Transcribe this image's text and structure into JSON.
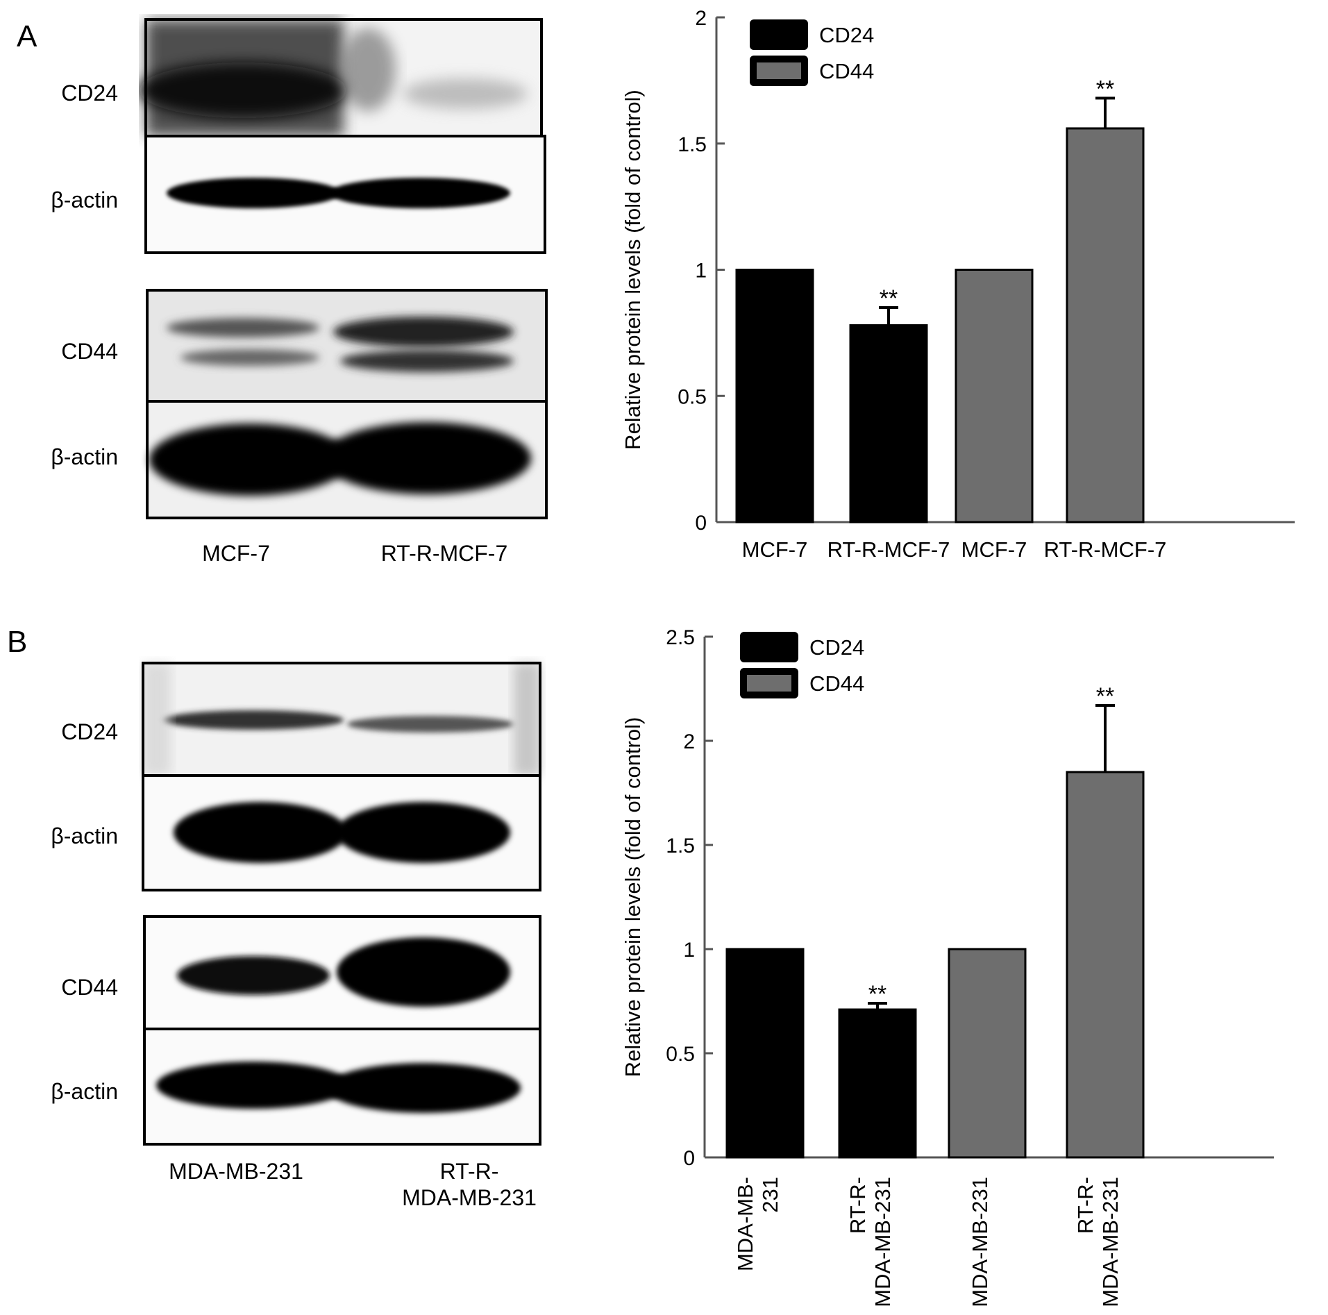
{
  "panels": {
    "a": {
      "letter": "A",
      "blot": {
        "rows": [
          "CD24",
          "β-actin",
          "CD44",
          "β-actin"
        ],
        "lanes": [
          "MCF-7",
          "RT-R-MCF-7"
        ]
      }
    },
    "b": {
      "letter": "B",
      "blot": {
        "rows": [
          "CD24",
          "β-actin",
          "CD44",
          "β-actin"
        ],
        "lanes": [
          "MDA-MB-231",
          "RT-R-\nMDA-MB-231"
        ]
      }
    }
  },
  "colors": {
    "cd24": "#000000",
    "cd44": "#6e6e6e"
  },
  "chart_data": [
    {
      "type": "bar",
      "ylabel": "Relative protein levels (fold of control)",
      "ylim": [
        0,
        2
      ],
      "yticks": [
        0,
        0.5,
        1,
        1.5,
        2
      ],
      "categories": [
        "MCF-7",
        "RT-R-MCF-7",
        "MCF-7",
        "RT-R-MCF-7"
      ],
      "values": [
        1.0,
        0.78,
        1.0,
        1.56
      ],
      "errors": [
        0,
        0.07,
        0,
        0.12
      ],
      "significance": [
        "",
        "**",
        "",
        "**"
      ],
      "series_of_bar": [
        0,
        0,
        1,
        1
      ],
      "series": [
        {
          "name": "CD24"
        },
        {
          "name": "CD44"
        }
      ],
      "legend": "top-left",
      "label_orientation": "horizontal",
      "grid": false
    },
    {
      "type": "bar",
      "ylabel": "Relative protein levels (fold of control)",
      "ylim": [
        0,
        2.5
      ],
      "yticks": [
        0,
        0.5,
        1,
        1.5,
        2,
        2.5
      ],
      "categories": [
        "MDA-MB-\n231",
        "RT-R-\nMDA-MB-231",
        "MDA-MB-231",
        "RT-R-\nMDA-MB-231"
      ],
      "values": [
        1.0,
        0.71,
        1.0,
        1.85
      ],
      "errors": [
        0,
        0.03,
        0,
        0.32
      ],
      "significance": [
        "",
        "**",
        "",
        "**"
      ],
      "series_of_bar": [
        0,
        0,
        1,
        1
      ],
      "series": [
        {
          "name": "CD24"
        },
        {
          "name": "CD44"
        }
      ],
      "legend": "top-left",
      "label_orientation": "vertical",
      "grid": false
    }
  ]
}
